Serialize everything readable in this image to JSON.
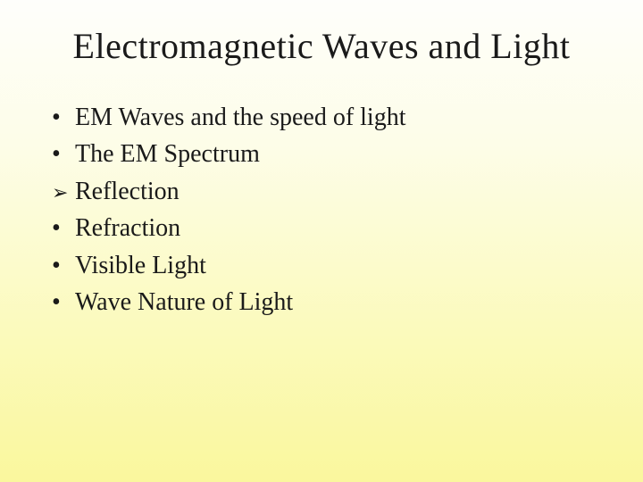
{
  "slide": {
    "title": "Electromagnetic Waves and Light",
    "background_gradient_top": "#fefefb",
    "background_gradient_bottom": "#faf79d",
    "title_fontsize": 40,
    "title_color": "#1a1a1a",
    "body_fontsize": 28,
    "body_color": "#1a1a1a",
    "font_family": "Times New Roman",
    "bullets": [
      {
        "text": "EM Waves and the speed of light",
        "marker": "dot"
      },
      {
        "text": "The EM Spectrum",
        "marker": "dot"
      },
      {
        "text": "Reflection",
        "marker": "arrow"
      },
      {
        "text": "Refraction",
        "marker": "dot"
      },
      {
        "text": "Visible Light",
        "marker": "dot"
      },
      {
        "text": "Wave Nature of Light",
        "marker": "dot"
      }
    ],
    "markers": {
      "dot": "•",
      "arrow": "➢"
    }
  }
}
